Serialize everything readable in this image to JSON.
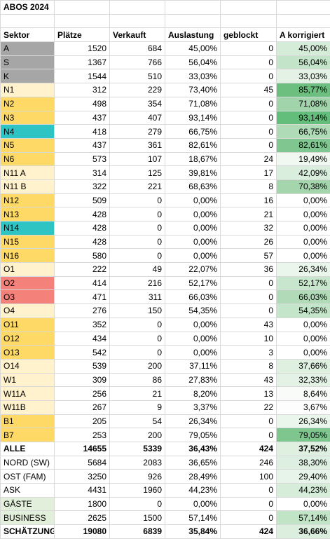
{
  "title": "ABOS 2024",
  "headers": [
    "Sektor",
    "Plätze",
    "Verkauft",
    "Auslastung",
    "geblockt",
    "A korrigiert"
  ],
  "rows": [
    {
      "sektor": "A",
      "plaetze": "1520",
      "verkauft": "684",
      "auslastung": "45,00%",
      "geblockt": "0",
      "korrigiert": "45,00%",
      "color": "#a6a6a6",
      "heat": "#d5ecd8",
      "bold": false
    },
    {
      "sektor": "S",
      "plaetze": "1367",
      "verkauft": "766",
      "auslastung": "56,04%",
      "geblockt": "0",
      "korrigiert": "56,04%",
      "color": "#a6a6a6",
      "heat": "#c3e4c8",
      "bold": false
    },
    {
      "sektor": "K",
      "plaetze": "1544",
      "verkauft": "510",
      "auslastung": "33,03%",
      "geblockt": "0",
      "korrigiert": "33,03%",
      "color": "#a6a6a6",
      "heat": "#e3f2e5",
      "bold": false
    },
    {
      "sektor": "N1",
      "plaetze": "312",
      "verkauft": "229",
      "auslastung": "73,40%",
      "geblockt": "45",
      "korrigiert": "85,77%",
      "color": "#fff2cc",
      "heat": "#6cbf7f",
      "bold": false
    },
    {
      "sektor": "N2",
      "plaetze": "498",
      "verkauft": "354",
      "auslastung": "71,08%",
      "geblockt": "0",
      "korrigiert": "71,08%",
      "color": "#ffd966",
      "heat": "#a2d4ab",
      "bold": false
    },
    {
      "sektor": "N3",
      "plaetze": "437",
      "verkauft": "407",
      "auslastung": "93,14%",
      "geblockt": "0",
      "korrigiert": "93,14%",
      "color": "#ffd966",
      "heat": "#63be7b",
      "bold": false
    },
    {
      "sektor": "N4",
      "plaetze": "418",
      "verkauft": "279",
      "auslastung": "66,75%",
      "geblockt": "0",
      "korrigiert": "66,75%",
      "color": "#2ec4c4",
      "heat": "#b0dbb7",
      "bold": false
    },
    {
      "sektor": "N5",
      "plaetze": "437",
      "verkauft": "361",
      "auslastung": "82,61%",
      "geblockt": "0",
      "korrigiert": "82,61%",
      "color": "#ffd966",
      "heat": "#80c690",
      "bold": false
    },
    {
      "sektor": "N6",
      "plaetze": "573",
      "verkauft": "107",
      "auslastung": "18,67%",
      "geblockt": "24",
      "korrigiert": "19,49%",
      "color": "#ffd966",
      "heat": "#f0f8f1",
      "bold": false
    },
    {
      "sektor": "N11 A",
      "plaetze": "314",
      "verkauft": "125",
      "auslastung": "39,81%",
      "geblockt": "17",
      "korrigiert": "42,09%",
      "color": "#fff2cc",
      "heat": "#d9eedc",
      "bold": false
    },
    {
      "sektor": "N11 B",
      "plaetze": "322",
      "verkauft": "221",
      "auslastung": "68,63%",
      "geblockt": "8",
      "korrigiert": "70,38%",
      "color": "#fff2cc",
      "heat": "#a4d5ad",
      "bold": false
    },
    {
      "sektor": "N12",
      "plaetze": "509",
      "verkauft": "0",
      "auslastung": "0,00%",
      "geblockt": "16",
      "korrigiert": "0,00%",
      "color": "#ffd966",
      "heat": "#ffffff",
      "bold": false
    },
    {
      "sektor": "N13",
      "plaetze": "428",
      "verkauft": "0",
      "auslastung": "0,00%",
      "geblockt": "21",
      "korrigiert": "0,00%",
      "color": "#ffd966",
      "heat": "#ffffff",
      "bold": false
    },
    {
      "sektor": "N14",
      "plaetze": "428",
      "verkauft": "0",
      "auslastung": "0,00%",
      "geblockt": "32",
      "korrigiert": "0,00%",
      "color": "#2ec4c4",
      "heat": "#ffffff",
      "bold": false
    },
    {
      "sektor": "N15",
      "plaetze": "428",
      "verkauft": "0",
      "auslastung": "0,00%",
      "geblockt": "26",
      "korrigiert": "0,00%",
      "color": "#ffd966",
      "heat": "#ffffff",
      "bold": false
    },
    {
      "sektor": "N16",
      "plaetze": "580",
      "verkauft": "0",
      "auslastung": "0,00%",
      "geblockt": "57",
      "korrigiert": "0,00%",
      "color": "#ffd966",
      "heat": "#ffffff",
      "bold": false
    },
    {
      "sektor": "O1",
      "plaetze": "222",
      "verkauft": "49",
      "auslastung": "22,07%",
      "geblockt": "36",
      "korrigiert": "26,34%",
      "color": "#fff2cc",
      "heat": "#eaf5ec",
      "bold": false
    },
    {
      "sektor": "O2",
      "plaetze": "414",
      "verkauft": "216",
      "auslastung": "52,17%",
      "geblockt": "0",
      "korrigiert": "52,17%",
      "color": "#f4817a",
      "heat": "#c8e6cd",
      "bold": false
    },
    {
      "sektor": "O3",
      "plaetze": "471",
      "verkauft": "311",
      "auslastung": "66,03%",
      "geblockt": "0",
      "korrigiert": "66,03%",
      "color": "#f4817a",
      "heat": "#b1dbb8",
      "bold": false
    },
    {
      "sektor": "O4",
      "plaetze": "276",
      "verkauft": "150",
      "auslastung": "54,35%",
      "geblockt": "0",
      "korrigiert": "54,35%",
      "color": "#fff2cc",
      "heat": "#c5e5ca",
      "bold": false
    },
    {
      "sektor": "O11",
      "plaetze": "352",
      "verkauft": "0",
      "auslastung": "0,00%",
      "geblockt": "43",
      "korrigiert": "0,00%",
      "color": "#ffd966",
      "heat": "#ffffff",
      "bold": false
    },
    {
      "sektor": "O12",
      "plaetze": "434",
      "verkauft": "0",
      "auslastung": "0,00%",
      "geblockt": "10",
      "korrigiert": "0,00%",
      "color": "#ffd966",
      "heat": "#ffffff",
      "bold": false
    },
    {
      "sektor": "O13",
      "plaetze": "542",
      "verkauft": "0",
      "auslastung": "0,00%",
      "geblockt": "3",
      "korrigiert": "0,00%",
      "color": "#ffd966",
      "heat": "#ffffff",
      "bold": false
    },
    {
      "sektor": "O14",
      "plaetze": "539",
      "verkauft": "200",
      "auslastung": "37,11%",
      "geblockt": "8",
      "korrigiert": "37,66%",
      "color": "#fff2cc",
      "heat": "#dff0e1",
      "bold": false
    },
    {
      "sektor": "W1",
      "plaetze": "309",
      "verkauft": "86",
      "auslastung": "27,83%",
      "geblockt": "43",
      "korrigiert": "32,33%",
      "color": "#fff2cc",
      "heat": "#e4f2e6",
      "bold": false
    },
    {
      "sektor": "W11A",
      "plaetze": "256",
      "verkauft": "21",
      "auslastung": "8,20%",
      "geblockt": "13",
      "korrigiert": "8,64%",
      "color": "#fff2cc",
      "heat": "#f8fbf8",
      "bold": false
    },
    {
      "sektor": "W11B",
      "plaetze": "267",
      "verkauft": "9",
      "auslastung": "3,37%",
      "geblockt": "22",
      "korrigiert": "3,67%",
      "color": "#fff2cc",
      "heat": "#fcfdfc",
      "bold": false
    },
    {
      "sektor": "B1",
      "plaetze": "205",
      "verkauft": "54",
      "auslastung": "26,34%",
      "geblockt": "0",
      "korrigiert": "26,34%",
      "color": "#ffd966",
      "heat": "#eaf5ec",
      "bold": false
    },
    {
      "sektor": "B7",
      "plaetze": "253",
      "verkauft": "200",
      "auslastung": "79,05%",
      "geblockt": "0",
      "korrigiert": "79,05%",
      "color": "#ffd966",
      "heat": "#7ec68e",
      "bold": false
    },
    {
      "sektor": "ALLE",
      "plaetze": "14655",
      "verkauft": "5339",
      "auslastung": "36,43%",
      "geblockt": "424",
      "korrigiert": "37,52%",
      "color": "#ffffff",
      "heat": "#dff0e1",
      "bold": true
    },
    {
      "sektor": "NORD (SW)",
      "plaetze": "5684",
      "verkauft": "2083",
      "auslastung": "36,65%",
      "geblockt": "246",
      "korrigiert": "38,30%",
      "color": "#ffffff",
      "heat": "#ddefe0",
      "bold": false
    },
    {
      "sektor": "OST (FAM)",
      "plaetze": "3250",
      "verkauft": "926",
      "auslastung": "28,49%",
      "geblockt": "100",
      "korrigiert": "29,40%",
      "color": "#ffffff",
      "heat": "#e7f4e9",
      "bold": false
    },
    {
      "sektor": "ASK",
      "plaetze": "4431",
      "verkauft": "1960",
      "auslastung": "44,23%",
      "geblockt": "0",
      "korrigiert": "44,23%",
      "color": "#ffffff",
      "heat": "#d6edd9",
      "bold": false
    },
    {
      "sektor": "GÄSTE",
      "plaetze": "1800",
      "verkauft": "0",
      "auslastung": "0,00%",
      "geblockt": "0",
      "korrigiert": "0,00%",
      "color": "#e2efda",
      "heat": "#ffffff",
      "bold": false
    },
    {
      "sektor": "BUSINESS",
      "plaetze": "2625",
      "verkauft": "1500",
      "auslastung": "57,14%",
      "geblockt": "0",
      "korrigiert": "57,14%",
      "color": "#e2efda",
      "heat": "#c1e3c6",
      "bold": false
    },
    {
      "sektor": "SCHÄTZUNG",
      "plaetze": "19080",
      "verkauft": "6839",
      "auslastung": "35,84%",
      "geblockt": "424",
      "korrigiert": "36,66%",
      "color": "#ffffff",
      "heat": "#dcefdf",
      "bold": true
    }
  ]
}
